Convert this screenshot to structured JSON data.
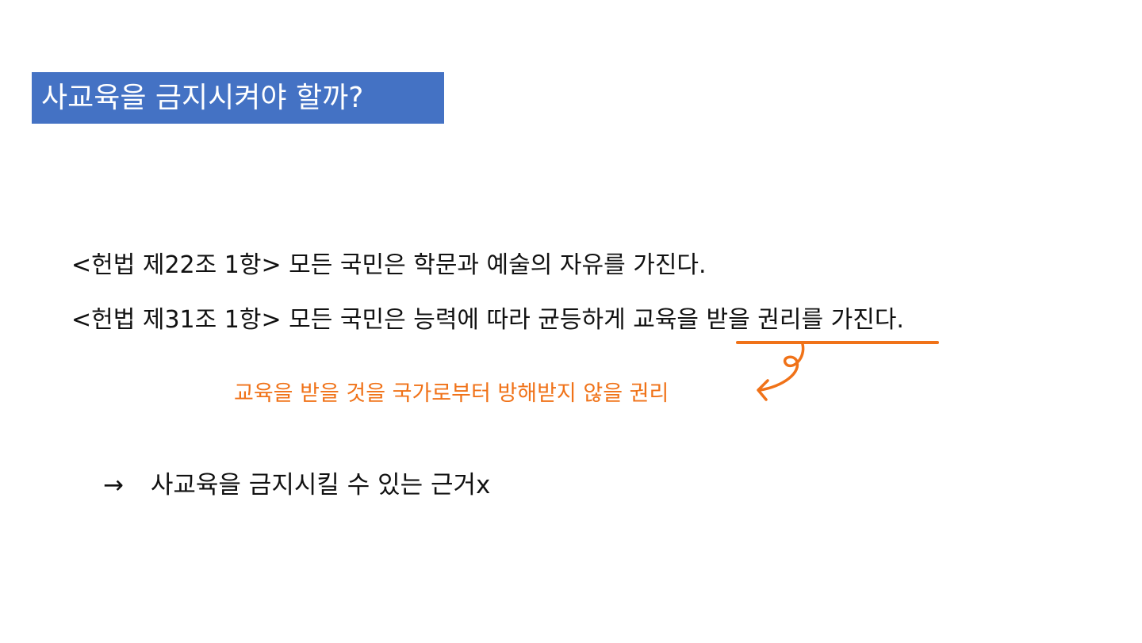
{
  "slide": {
    "title": "사교육을 금지시켜야 할까?",
    "lines": [
      "<헌법 제22조 1항> 모든 국민은 학문과 예술의 자유를 가진다.",
      "<헌법 제31조 1항> 모든 국민은 능력에 따라 균등하게 교육을 받을 권리를 가진다."
    ],
    "annotation": "교육을 받을 것을 국가로부터 방해받지 않을 권리",
    "conclusion": {
      "arrow": "→",
      "text": "사교육을 금지시킬 수 있는 근거x"
    },
    "colors": {
      "title_bg": "#4472c4",
      "title_text": "#ffffff",
      "accent": "#f07218",
      "body_text": "#111111"
    }
  }
}
